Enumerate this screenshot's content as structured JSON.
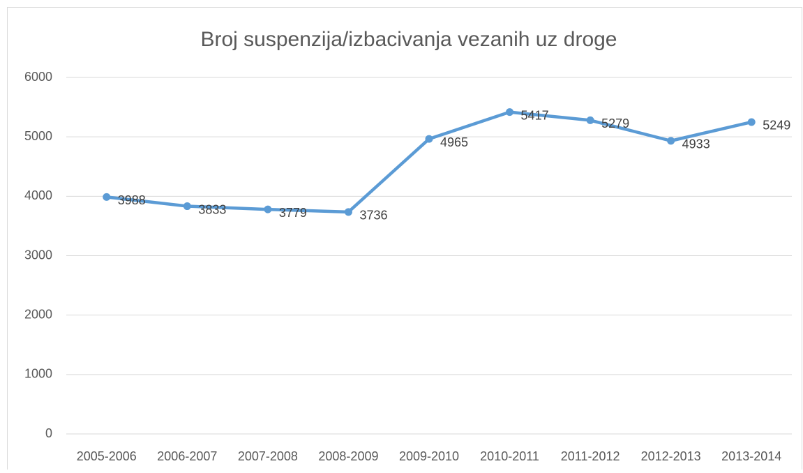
{
  "chart_data": {
    "type": "line",
    "title": "Broj suspenzija/izbacivanja vezanih uz droge",
    "categories": [
      "2005-2006",
      "2006-2007",
      "2007-2008",
      "2008-2009",
      "2009-2010",
      "2010-2011",
      "2011-2012",
      "2012-2013",
      "2013-2014"
    ],
    "series": [
      {
        "name": "Broj suspenzija/izbacivanja",
        "color": "#5b9bd5",
        "values": [
          3988,
          3833,
          3779,
          3736,
          4965,
          5417,
          5279,
          4933,
          5249
        ]
      }
    ],
    "ylim": [
      0,
      6000
    ],
    "yticks": [
      0,
      1000,
      2000,
      3000,
      4000,
      5000,
      6000
    ],
    "grid": true
  }
}
